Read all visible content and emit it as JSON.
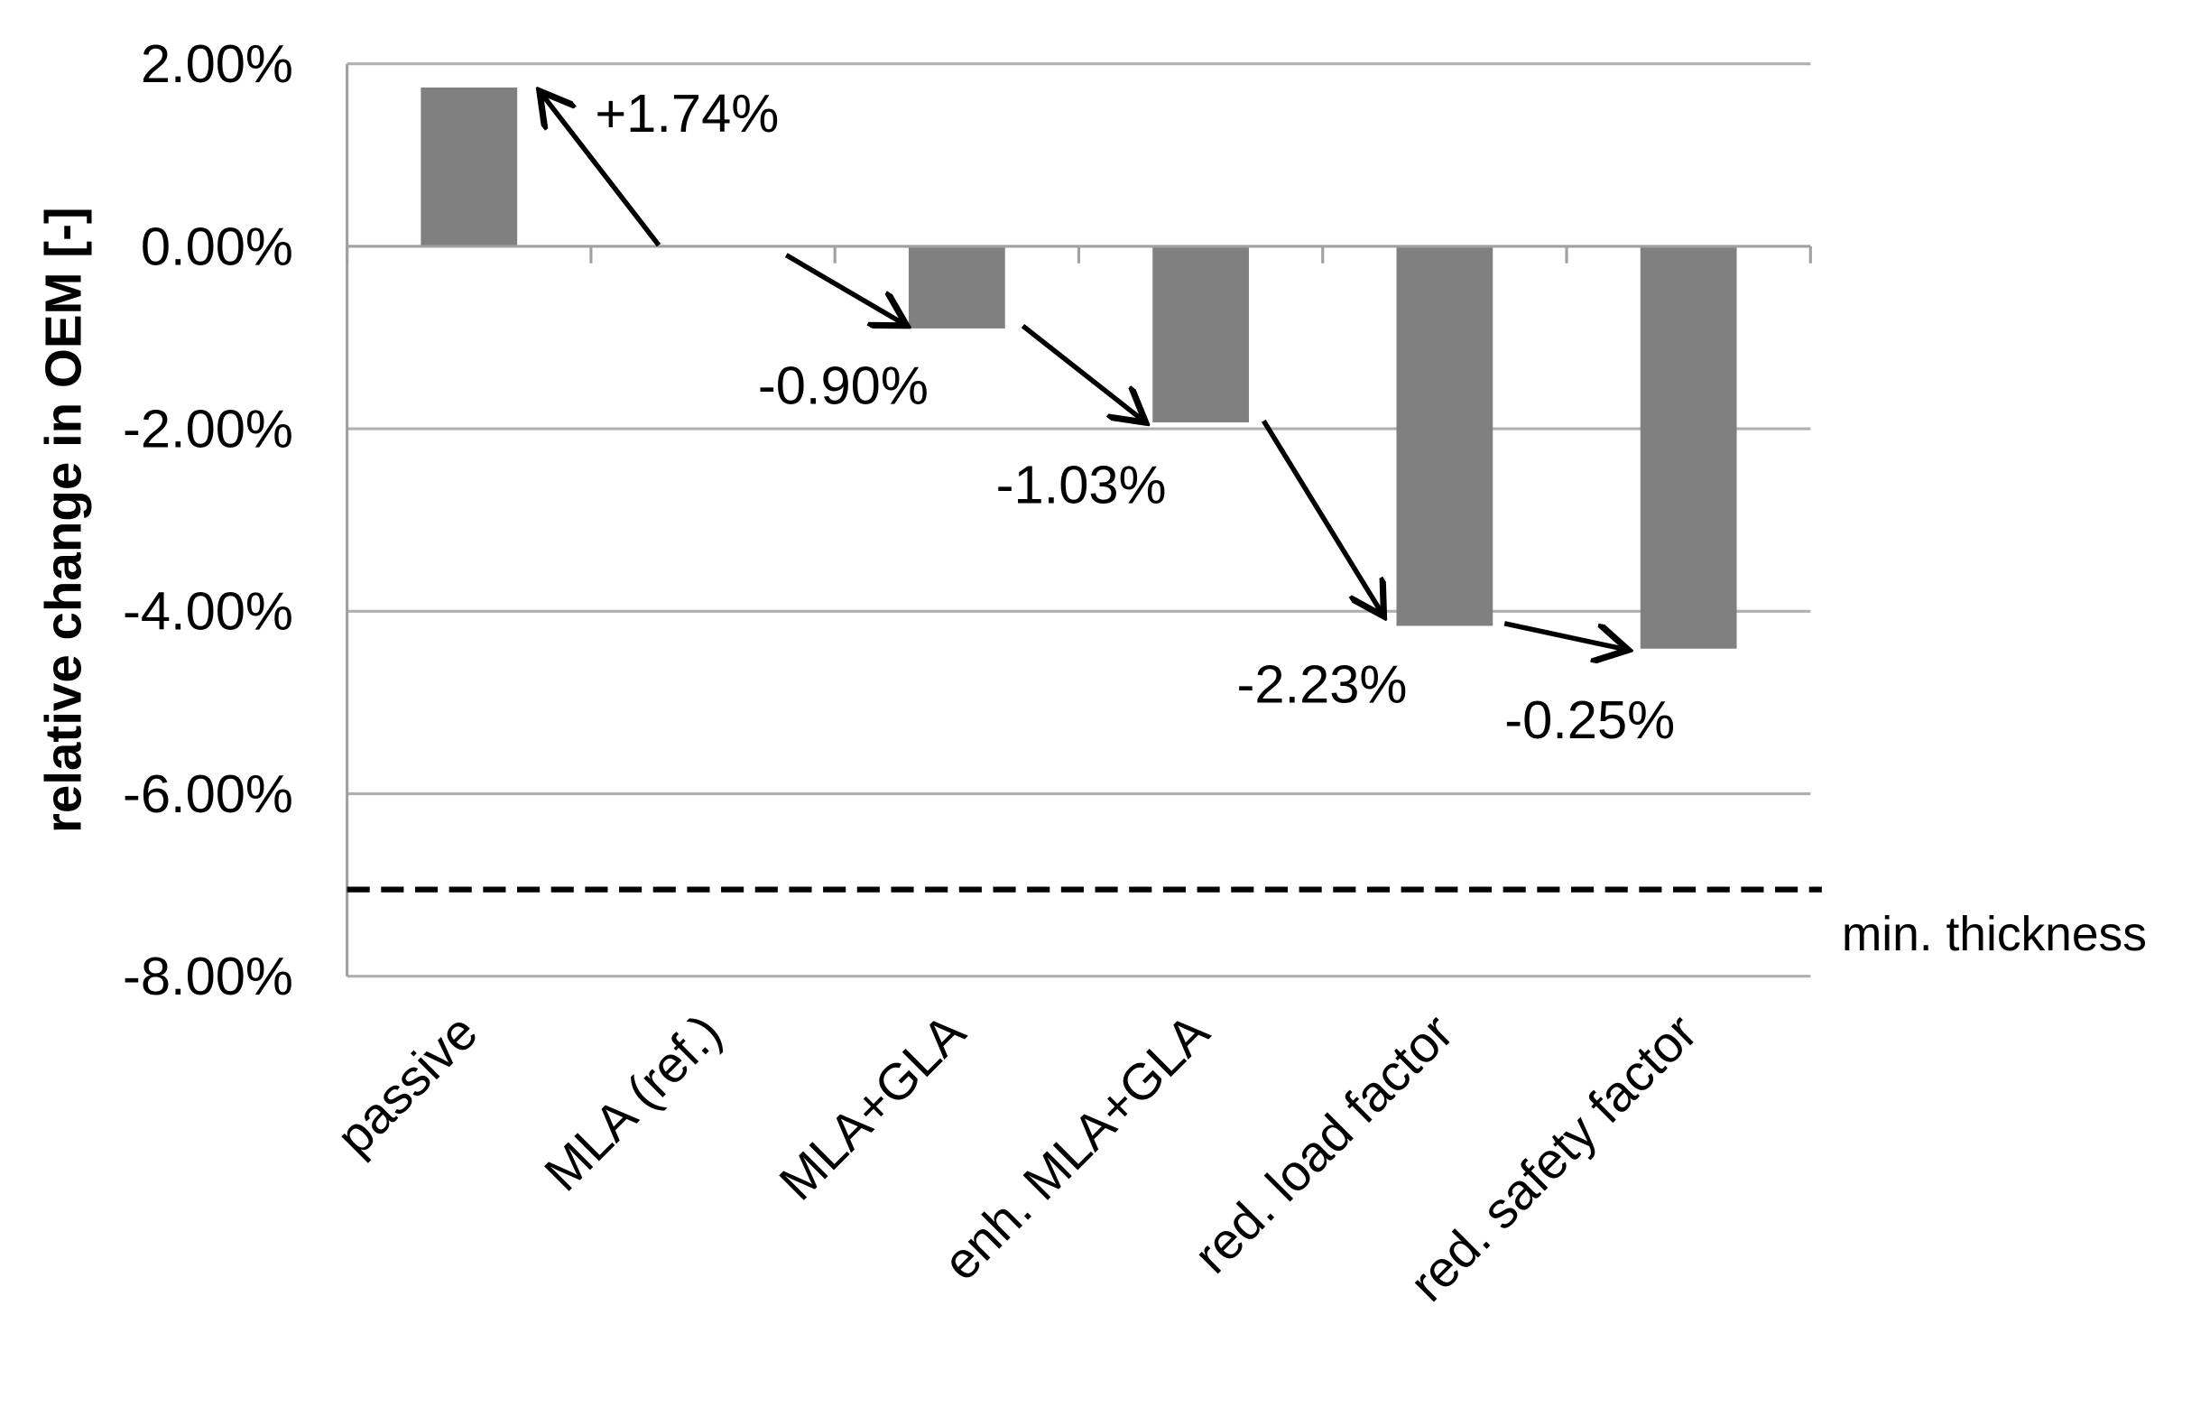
{
  "chart_data": {
    "type": "bar",
    "title": "",
    "xlabel": "",
    "ylabel": "relative change in OEM [-]",
    "ylim": [
      -8,
      2
    ],
    "y_ticks": [
      2,
      0,
      -2,
      -4,
      -6,
      -8
    ],
    "y_tick_labels": [
      "2.00%",
      "0.00%",
      "-2.00%",
      "-4.00%",
      "-6.00%",
      "-8.00%"
    ],
    "grid": "horizontal",
    "categories": [
      "passive",
      "MLA (ref.)",
      "MLA+GLA",
      "enh. MLA+GLA",
      "red. load factor",
      "red. safety factor"
    ],
    "values": [
      1.74,
      0,
      -0.9,
      -1.93,
      -4.16,
      -4.41
    ],
    "unit": "%",
    "bar_color": "#808080",
    "step_annotations": [
      {
        "from": "MLA (ref.)",
        "to": "passive",
        "label": "+1.74%"
      },
      {
        "from": "MLA (ref.)",
        "to": "MLA+GLA",
        "label": "-0.90%"
      },
      {
        "from": "MLA+GLA",
        "to": "enh. MLA+GLA",
        "label": "-1.03%"
      },
      {
        "from": "enh. MLA+GLA",
        "to": "red. load factor",
        "label": "-2.23%"
      },
      {
        "from": "red. load factor",
        "to": "red. safety factor",
        "label": "-0.25%"
      }
    ],
    "reference_line": {
      "value": -7.05,
      "label": "min. thickness",
      "style": "dashed"
    }
  }
}
